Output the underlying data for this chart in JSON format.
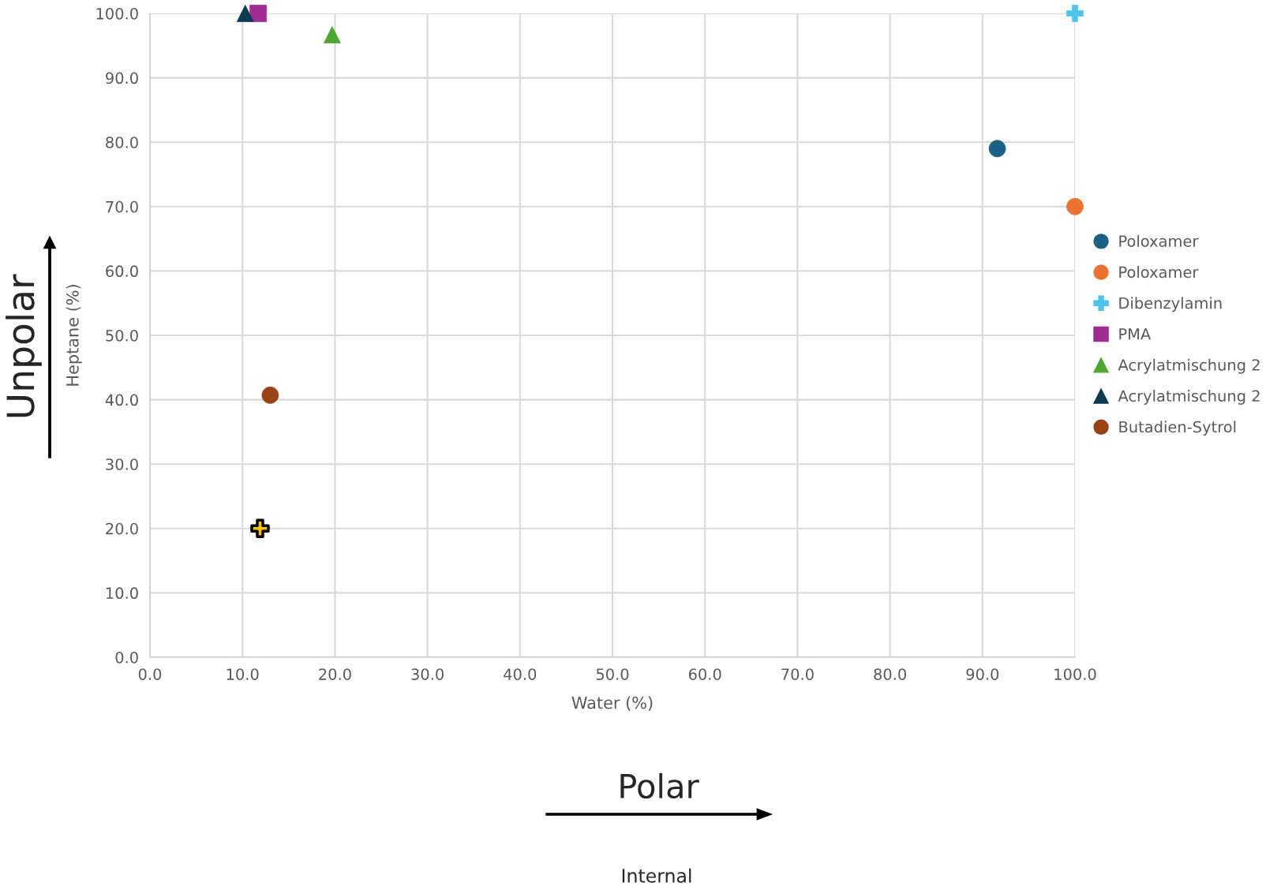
{
  "chart_data": {
    "type": "scatter",
    "xlabel": "Water (%)",
    "ylabel": "Heptane (%)",
    "xlim": [
      0,
      100
    ],
    "ylim": [
      0,
      100
    ],
    "xticks": [
      {
        "value": 0,
        "label": "0.0"
      },
      {
        "value": 10,
        "label": "10.0"
      },
      {
        "value": 20,
        "label": "20.0"
      },
      {
        "value": 30,
        "label": "30.0"
      },
      {
        "value": 40,
        "label": "40.0"
      },
      {
        "value": 50,
        "label": "50.0"
      },
      {
        "value": 60,
        "label": "60.0"
      },
      {
        "value": 70,
        "label": "70.0"
      },
      {
        "value": 80,
        "label": "80.0"
      },
      {
        "value": 90,
        "label": "90.0"
      },
      {
        "value": 100,
        "label": "100.0"
      }
    ],
    "yticks": [
      {
        "value": 0,
        "label": "0.0"
      },
      {
        "value": 10,
        "label": "10.0"
      },
      {
        "value": 20,
        "label": "20.0"
      },
      {
        "value": 30,
        "label": "30.0"
      },
      {
        "value": 40,
        "label": "40.0"
      },
      {
        "value": 50,
        "label": "50.0"
      },
      {
        "value": 60,
        "label": "60.0"
      },
      {
        "value": 70,
        "label": "70.0"
      },
      {
        "value": 80,
        "label": "80.0"
      },
      {
        "value": 90,
        "label": "90.0"
      },
      {
        "value": 100,
        "label": "100.0"
      }
    ],
    "grid": true,
    "legend": "right",
    "series": [
      {
        "name": "Poloxamer",
        "color": "#1a6185",
        "marker": "circle",
        "x": [
          91.6
        ],
        "values": [
          79.0
        ]
      },
      {
        "name": "Poloxamer",
        "color": "#ec7232",
        "marker": "circle",
        "x": [
          100
        ],
        "values": [
          70.0
        ]
      },
      {
        "name": "Dibenzylamin",
        "color": "#4ec3f0",
        "marker": "cross",
        "x": [
          100
        ],
        "values": [
          100
        ]
      },
      {
        "name": "PMA",
        "color": "#a02b93",
        "marker": "square",
        "x": [
          11.7
        ],
        "values": [
          100
        ]
      },
      {
        "name": "Acrylatmischung 2",
        "color": "#4ea72e",
        "marker": "triangle",
        "x": [
          19.7
        ],
        "values": [
          96.7
        ]
      },
      {
        "name": "Acrylatmischung 2",
        "color": "#0e3a52",
        "marker": "triangle",
        "x": [
          10.3
        ],
        "values": [
          100
        ]
      },
      {
        "name": "Butadien-Sytrol",
        "color": "#984215",
        "marker": "circle",
        "x": [
          13.0
        ],
        "values": [
          40.7
        ]
      },
      {
        "color": "#ffc000",
        "marker": "cross",
        "x": [
          11.9
        ],
        "values": [
          20.0
        ]
      }
    ],
    "annotations": [
      "Unpolar",
      "Polar",
      "Internal"
    ]
  }
}
